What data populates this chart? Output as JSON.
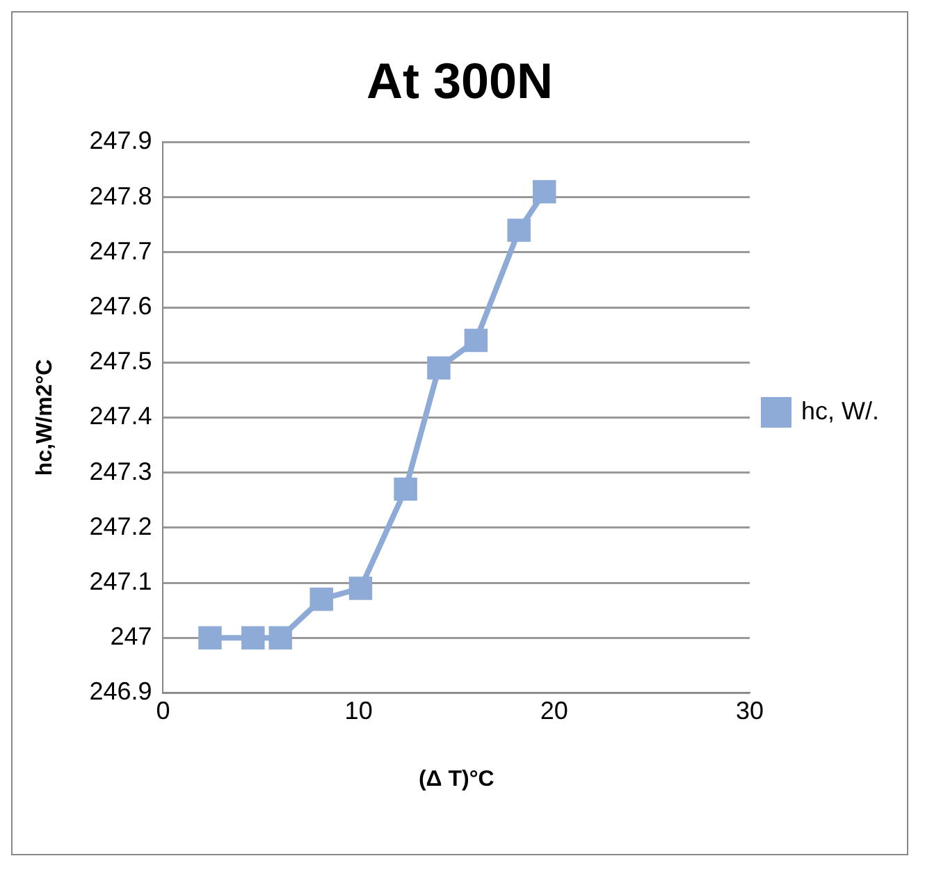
{
  "chart_data": {
    "type": "line",
    "title": "At 300N",
    "xlabel": "(Δ T)°C",
    "ylabel": "hc,W/m2°C",
    "series": [
      {
        "name": "hc, W/.",
        "color": "#8eaad6",
        "x": [
          2.4,
          4.6,
          6.0,
          8.1,
          10.1,
          12.4,
          14.1,
          16.0,
          18.2,
          19.5
        ],
        "values": [
          247.0,
          247.0,
          247.0,
          247.07,
          247.09,
          247.27,
          247.49,
          247.54,
          247.74,
          247.81
        ]
      }
    ],
    "xlim": [
      0,
      30
    ],
    "xticks": [
      0,
      10,
      20,
      30
    ],
    "ylim": [
      246.9,
      247.9
    ],
    "yticks": [
      246.9,
      247,
      247.1,
      247.2,
      247.3,
      247.4,
      247.5,
      247.6,
      247.7,
      247.8,
      247.9
    ],
    "grid": "y",
    "legend": "right",
    "marker": "square",
    "line_style": "solid"
  }
}
